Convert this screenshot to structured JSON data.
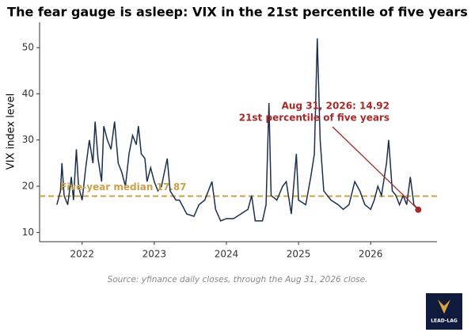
{
  "chart_data": {
    "type": "line",
    "title": "The fear gauge is asleep: VIX in the 21st percentile of five years",
    "y_label": "VIX index level",
    "x": [
      2021.65,
      2021.7,
      2021.72,
      2021.75,
      2021.8,
      2021.85,
      2021.88,
      2021.92,
      2021.95,
      2022.0,
      2022.05,
      2022.1,
      2022.15,
      2022.18,
      2022.22,
      2022.27,
      2022.3,
      2022.35,
      2022.4,
      2022.45,
      2022.5,
      2022.55,
      2022.6,
      2022.65,
      2022.7,
      2022.75,
      2022.78,
      2022.82,
      2022.87,
      2022.9,
      2022.95,
      2023.0,
      2023.05,
      2023.1,
      2023.18,
      2023.22,
      2023.3,
      2023.35,
      2023.45,
      2023.55,
      2023.62,
      2023.7,
      2023.8,
      2023.85,
      2023.92,
      2024.0,
      2024.1,
      2024.2,
      2024.3,
      2024.35,
      2024.4,
      2024.5,
      2024.55,
      2024.59,
      2024.62,
      2024.7,
      2024.78,
      2024.83,
      2024.9,
      2024.97,
      2025.0,
      2025.1,
      2025.17,
      2025.22,
      2025.26,
      2025.3,
      2025.35,
      2025.4,
      2025.45,
      2025.55,
      2025.62,
      2025.7,
      2025.78,
      2025.85,
      2025.92,
      2026.0,
      2026.05,
      2026.1,
      2026.15,
      2026.22,
      2026.25,
      2026.3,
      2026.35,
      2026.4,
      2026.45,
      2026.5,
      2026.55,
      2026.6,
      2026.63,
      2026.66
    ],
    "series": [
      {
        "name": "VIX",
        "color": "#1b2f4e",
        "values": [
          16,
          19,
          25,
          18,
          16,
          22,
          17,
          28,
          20,
          17,
          24,
          30,
          25,
          34,
          26,
          21,
          33,
          30,
          28,
          34,
          25,
          23,
          20,
          27,
          31,
          29,
          33,
          27,
          26,
          21,
          24,
          21,
          19,
          20,
          26,
          19,
          17,
          17,
          14,
          13.5,
          16,
          17,
          21,
          15,
          12.5,
          13,
          13,
          14,
          15,
          18,
          12.5,
          12.5,
          16,
          38,
          18,
          17,
          20,
          21,
          14,
          27,
          17,
          16,
          22,
          27,
          52,
          30,
          19,
          18,
          17,
          16,
          15,
          16,
          21,
          19,
          16,
          15,
          17,
          20,
          18,
          25,
          30,
          19,
          18,
          16,
          18,
          16,
          22,
          16,
          15.5,
          14.92
        ]
      }
    ],
    "xlim": [
      2021.41,
      2026.92
    ],
    "xticks": [
      2022,
      2023,
      2024,
      2025,
      2026
    ],
    "ylim": [
      8,
      55.5
    ],
    "yticks": [
      10,
      20,
      30,
      40,
      50
    ],
    "median": {
      "value": 17.87,
      "label": "Five-year median 17.87",
      "color": "#c9a14a"
    },
    "annotation": {
      "lines": [
        "Aug 31, 2026: 14.92",
        "21st percentile of five years"
      ],
      "color": "#a52a2a"
    },
    "source": "Source: yfinance daily closes, through the Aug 31, 2026 close.",
    "logo": "LEAD-LAG"
  }
}
